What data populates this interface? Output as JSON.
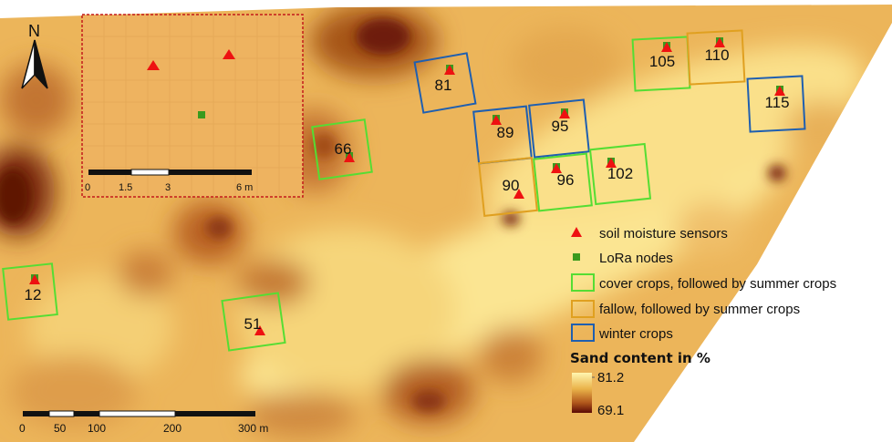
{
  "north_arrow": {
    "label": "N",
    "icon": "north-arrow-icon"
  },
  "plots": [
    {
      "id": "12",
      "group": "cover"
    },
    {
      "id": "51",
      "group": "cover"
    },
    {
      "id": "66",
      "group": "cover"
    },
    {
      "id": "81",
      "group": "winter"
    },
    {
      "id": "89",
      "group": "winter"
    },
    {
      "id": "95",
      "group": "winter"
    },
    {
      "id": "90",
      "group": "fallow"
    },
    {
      "id": "96",
      "group": "cover"
    },
    {
      "id": "102",
      "group": "cover"
    },
    {
      "id": "105",
      "group": "cover"
    },
    {
      "id": "110",
      "group": "fallow"
    },
    {
      "id": "115",
      "group": "winter"
    }
  ],
  "scale_bar": {
    "ticks": [
      "0",
      "50",
      "100",
      "200",
      "300 m"
    ]
  },
  "inset_scale_bar": {
    "ticks": [
      "0",
      "1.5",
      "3",
      "6 m"
    ]
  },
  "legend": {
    "items": [
      {
        "key": "sensor",
        "label": "soil moisture sensors",
        "icon": "red-triangle-icon",
        "color": "#ee1111"
      },
      {
        "key": "lora",
        "label": "LoRa nodes",
        "icon": "green-square-icon",
        "color": "#3a9a1e"
      },
      {
        "key": "cover",
        "label": "cover crops, followed by summer crops",
        "color": "#55dd33"
      },
      {
        "key": "fallow",
        "label": "fallow, followed by summer crops",
        "color": "#e0a020"
      },
      {
        "key": "winter",
        "label": "winter crops",
        "color": "#1f5fb0"
      }
    ],
    "colorbar": {
      "title": "Sand content in %",
      "max": "81.2",
      "min": "69.1",
      "color_high": "#fff6b0",
      "color_low": "#5a0a05"
    }
  }
}
